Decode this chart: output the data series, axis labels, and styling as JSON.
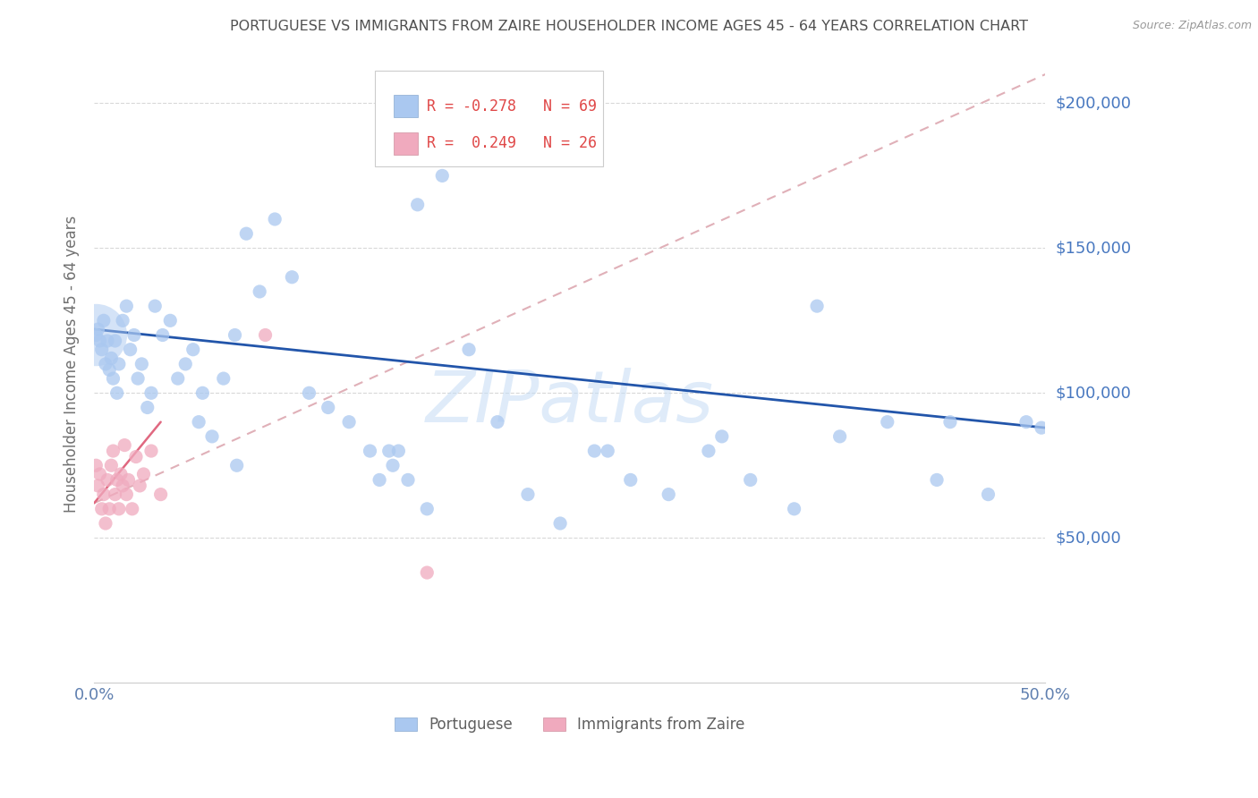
{
  "title": "PORTUGUESE VS IMMIGRANTS FROM ZAIRE HOUSEHOLDER INCOME AGES 45 - 64 YEARS CORRELATION CHART",
  "source": "Source: ZipAtlas.com",
  "ylabel": "Householder Income Ages 45 - 64 years",
  "xlim": [
    0.0,
    0.5
  ],
  "ylim": [
    0,
    220000
  ],
  "yticks": [
    0,
    50000,
    100000,
    150000,
    200000
  ],
  "xticks": [
    0.0,
    0.05,
    0.1,
    0.15,
    0.2,
    0.25,
    0.3,
    0.35,
    0.4,
    0.45,
    0.5
  ],
  "portuguese_color": "#aac8f0",
  "zaire_color": "#f0aabe",
  "portuguese_line_color": "#2255aa",
  "zaire_line_color": "#e06880",
  "zaire_dashed_color": "#e0b0b8",
  "watermark": "ZIPatlas",
  "watermark_color": "#c5dcf5",
  "legend_text_color": "#e04848",
  "legend_n_color": "#e04848",
  "background_color": "#ffffff",
  "grid_color": "#d8d8d8",
  "title_color": "#505050",
  "axis_label_color": "#707070",
  "tick_color": "#6080b0",
  "right_label_color": "#4878c0",
  "portuguese_x": [
    0.001,
    0.002,
    0.003,
    0.004,
    0.005,
    0.006,
    0.007,
    0.008,
    0.009,
    0.01,
    0.011,
    0.012,
    0.013,
    0.015,
    0.017,
    0.019,
    0.021,
    0.023,
    0.025,
    0.028,
    0.032,
    0.036,
    0.04,
    0.044,
    0.048,
    0.052,
    0.057,
    0.062,
    0.068,
    0.074,
    0.08,
    0.087,
    0.095,
    0.104,
    0.113,
    0.123,
    0.134,
    0.145,
    0.157,
    0.17,
    0.183,
    0.197,
    0.212,
    0.228,
    0.245,
    0.263,
    0.282,
    0.302,
    0.323,
    0.345,
    0.368,
    0.392,
    0.417,
    0.443,
    0.47,
    0.498,
    0.03,
    0.055,
    0.075,
    0.15,
    0.155,
    0.16,
    0.165,
    0.175,
    0.27,
    0.33,
    0.38,
    0.45,
    0.49
  ],
  "portuguese_y": [
    120000,
    122000,
    118000,
    115000,
    125000,
    110000,
    118000,
    108000,
    112000,
    105000,
    118000,
    100000,
    110000,
    125000,
    130000,
    115000,
    120000,
    105000,
    110000,
    95000,
    130000,
    120000,
    125000,
    105000,
    110000,
    115000,
    100000,
    85000,
    105000,
    120000,
    155000,
    135000,
    160000,
    140000,
    100000,
    95000,
    90000,
    80000,
    75000,
    165000,
    175000,
    115000,
    90000,
    65000,
    55000,
    80000,
    70000,
    65000,
    80000,
    70000,
    60000,
    85000,
    90000,
    70000,
    65000,
    88000,
    100000,
    90000,
    75000,
    70000,
    80000,
    80000,
    70000,
    60000,
    80000,
    85000,
    130000,
    90000,
    90000
  ],
  "portuguese_sizes": [
    120,
    120,
    120,
    120,
    120,
    120,
    120,
    120,
    120,
    120,
    120,
    120,
    120,
    120,
    120,
    120,
    120,
    120,
    120,
    120,
    120,
    120,
    120,
    120,
    120,
    120,
    120,
    120,
    120,
    120,
    120,
    120,
    120,
    120,
    120,
    120,
    120,
    120,
    120,
    120,
    120,
    120,
    120,
    120,
    120,
    120,
    120,
    120,
    120,
    120,
    120,
    120,
    120,
    120,
    120,
    120,
    120,
    120,
    120,
    120,
    120,
    120,
    120,
    120,
    120,
    120,
    120,
    120,
    120
  ],
  "zaire_x": [
    0.001,
    0.002,
    0.003,
    0.004,
    0.005,
    0.006,
    0.007,
    0.008,
    0.009,
    0.01,
    0.011,
    0.012,
    0.013,
    0.014,
    0.015,
    0.016,
    0.017,
    0.018,
    0.02,
    0.022,
    0.024,
    0.026,
    0.03,
    0.035,
    0.09,
    0.175
  ],
  "zaire_y": [
    75000,
    68000,
    72000,
    60000,
    65000,
    55000,
    70000,
    60000,
    75000,
    80000,
    65000,
    70000,
    60000,
    72000,
    68000,
    82000,
    65000,
    70000,
    60000,
    78000,
    68000,
    72000,
    80000,
    65000,
    120000,
    38000
  ],
  "zaire_sizes": [
    120,
    120,
    120,
    120,
    120,
    120,
    120,
    120,
    120,
    120,
    120,
    120,
    120,
    120,
    120,
    120,
    120,
    120,
    120,
    120,
    120,
    120,
    120,
    120,
    120,
    120
  ],
  "p_trend_x0": 0.0,
  "p_trend_y0": 122000,
  "p_trend_x1": 0.5,
  "p_trend_y1": 88000,
  "z_trend_x0": 0.0,
  "z_trend_y0": 62000,
  "z_trend_x1": 0.5,
  "z_trend_y1": 210000
}
